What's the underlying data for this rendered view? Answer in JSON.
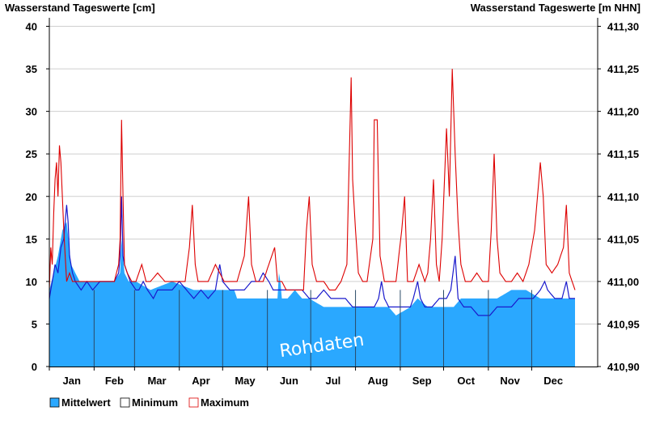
{
  "chart_data": {
    "type": "area",
    "title_left": "Wasserstand Tageswerte [cm]",
    "title_right": "Wasserstand Tageswerte [m NHN]",
    "watermark": "Rohdaten",
    "ylim": [
      0,
      41
    ],
    "ylim_right": [
      410.9,
      411.31
    ],
    "yticks": [
      "0",
      "5",
      "10",
      "15",
      "20",
      "25",
      "30",
      "35",
      "40"
    ],
    "yticks_right": [
      "410,90",
      "410,95",
      "411,00",
      "411,05",
      "411,10",
      "411,15",
      "411,20",
      "411,25",
      "411,30"
    ],
    "months": [
      "Jan",
      "Feb",
      "Mar",
      "Apr",
      "May",
      "Jun",
      "Jul",
      "Aug",
      "Sep",
      "Oct",
      "Nov",
      "Dec"
    ],
    "x_days": 365,
    "grid": true,
    "legend_position": "bottom-left",
    "colors": {
      "mean_fill": "#2aa8ff",
      "min_line": "#1a1acc",
      "max_line": "#dd0000",
      "grid": "#cfcfcf",
      "month_line": "#2a4a66"
    },
    "series": [
      {
        "name": "Mittelwert",
        "color": "#2aa8ff",
        "daily": [
          [
            0,
            9
          ],
          [
            3,
            11
          ],
          [
            6,
            13
          ],
          [
            9,
            16
          ],
          [
            12,
            17
          ],
          [
            15,
            12
          ],
          [
            18,
            11
          ],
          [
            21,
            10
          ],
          [
            25,
            10
          ],
          [
            30,
            10
          ],
          [
            35,
            10
          ],
          [
            40,
            10
          ],
          [
            45,
            10
          ],
          [
            49,
            11
          ],
          [
            50,
            15
          ],
          [
            51,
            13
          ],
          [
            52,
            11
          ],
          [
            55,
            10
          ],
          [
            60,
            10
          ],
          [
            70,
            9
          ],
          [
            85,
            10
          ],
          [
            100,
            9
          ],
          [
            110,
            9
          ],
          [
            120,
            9
          ],
          [
            128,
            9
          ],
          [
            130,
            8
          ],
          [
            140,
            8
          ],
          [
            150,
            8
          ],
          [
            158,
            8
          ],
          [
            159,
            11
          ],
          [
            160,
            10
          ],
          [
            161,
            8
          ],
          [
            165,
            8
          ],
          [
            170,
            9
          ],
          [
            175,
            8
          ],
          [
            180,
            8
          ],
          [
            190,
            7
          ],
          [
            200,
            7
          ],
          [
            220,
            7
          ],
          [
            235,
            7
          ],
          [
            240,
            6
          ],
          [
            250,
            7
          ],
          [
            255,
            8
          ],
          [
            262,
            7
          ],
          [
            270,
            7
          ],
          [
            280,
            7
          ],
          [
            285,
            8
          ],
          [
            290,
            8
          ],
          [
            300,
            8
          ],
          [
            310,
            8
          ],
          [
            320,
            9
          ],
          [
            330,
            9
          ],
          [
            340,
            8
          ],
          [
            350,
            8
          ],
          [
            360,
            8
          ],
          [
            364,
            8
          ]
        ]
      },
      {
        "name": "Minimum",
        "color": "#1a1acc",
        "daily": [
          [
            0,
            8
          ],
          [
            2,
            10
          ],
          [
            4,
            12
          ],
          [
            6,
            11
          ],
          [
            8,
            14
          ],
          [
            10,
            15
          ],
          [
            11,
            17
          ],
          [
            12,
            19
          ],
          [
            13,
            17
          ],
          [
            14,
            13
          ],
          [
            16,
            11
          ],
          [
            18,
            10
          ],
          [
            22,
            9
          ],
          [
            26,
            10
          ],
          [
            30,
            9
          ],
          [
            35,
            10
          ],
          [
            40,
            10
          ],
          [
            45,
            10
          ],
          [
            48,
            11
          ],
          [
            49,
            13
          ],
          [
            50,
            20
          ],
          [
            51,
            13
          ],
          [
            52,
            12
          ],
          [
            54,
            11
          ],
          [
            56,
            10
          ],
          [
            60,
            9
          ],
          [
            62,
            9
          ],
          [
            65,
            10
          ],
          [
            68,
            9
          ],
          [
            72,
            8
          ],
          [
            75,
            9
          ],
          [
            80,
            9
          ],
          [
            85,
            9
          ],
          [
            90,
            10
          ],
          [
            95,
            9
          ],
          [
            100,
            8
          ],
          [
            105,
            9
          ],
          [
            110,
            8
          ],
          [
            115,
            9
          ],
          [
            118,
            12
          ],
          [
            120,
            10
          ],
          [
            125,
            9
          ],
          [
            130,
            9
          ],
          [
            135,
            9
          ],
          [
            140,
            10
          ],
          [
            145,
            10
          ],
          [
            148,
            11
          ],
          [
            152,
            10
          ],
          [
            155,
            9
          ],
          [
            160,
            9
          ],
          [
            165,
            9
          ],
          [
            170,
            9
          ],
          [
            175,
            9
          ],
          [
            180,
            8
          ],
          [
            185,
            8
          ],
          [
            190,
            9
          ],
          [
            195,
            8
          ],
          [
            200,
            8
          ],
          [
            205,
            8
          ],
          [
            210,
            7
          ],
          [
            215,
            7
          ],
          [
            220,
            7
          ],
          [
            225,
            7
          ],
          [
            228,
            8
          ],
          [
            230,
            10
          ],
          [
            232,
            8
          ],
          [
            235,
            7
          ],
          [
            240,
            7
          ],
          [
            245,
            7
          ],
          [
            250,
            7
          ],
          [
            252,
            8
          ],
          [
            255,
            10
          ],
          [
            257,
            8
          ],
          [
            260,
            7
          ],
          [
            265,
            7
          ],
          [
            270,
            8
          ],
          [
            275,
            8
          ],
          [
            278,
            9
          ],
          [
            281,
            13
          ],
          [
            283,
            8
          ],
          [
            287,
            7
          ],
          [
            292,
            7
          ],
          [
            297,
            6
          ],
          [
            300,
            6
          ],
          [
            305,
            6
          ],
          [
            310,
            7
          ],
          [
            315,
            7
          ],
          [
            320,
            7
          ],
          [
            325,
            8
          ],
          [
            330,
            8
          ],
          [
            335,
            8
          ],
          [
            340,
            9
          ],
          [
            343,
            10
          ],
          [
            345,
            9
          ],
          [
            350,
            8
          ],
          [
            355,
            8
          ],
          [
            358,
            10
          ],
          [
            360,
            8
          ],
          [
            364,
            8
          ]
        ]
      },
      {
        "name": "Maximum",
        "color": "#dd0000",
        "daily": [
          [
            0,
            9
          ],
          [
            1,
            14
          ],
          [
            2,
            12
          ],
          [
            3,
            18
          ],
          [
            4,
            22
          ],
          [
            5,
            24
          ],
          [
            6,
            20
          ],
          [
            7,
            26
          ],
          [
            8,
            24
          ],
          [
            9,
            20
          ],
          [
            10,
            16
          ],
          [
            11,
            13
          ],
          [
            12,
            10
          ],
          [
            14,
            11
          ],
          [
            16,
            10
          ],
          [
            20,
            10
          ],
          [
            25,
            10
          ],
          [
            30,
            10
          ],
          [
            35,
            10
          ],
          [
            40,
            10
          ],
          [
            45,
            10
          ],
          [
            48,
            12
          ],
          [
            49,
            15
          ],
          [
            50,
            29
          ],
          [
            51,
            20
          ],
          [
            52,
            12
          ],
          [
            54,
            11
          ],
          [
            57,
            10
          ],
          [
            60,
            10
          ],
          [
            64,
            12
          ],
          [
            67,
            10
          ],
          [
            70,
            10
          ],
          [
            75,
            11
          ],
          [
            80,
            10
          ],
          [
            85,
            10
          ],
          [
            90,
            10
          ],
          [
            94,
            10
          ],
          [
            97,
            14
          ],
          [
            99,
            19
          ],
          [
            101,
            12
          ],
          [
            103,
            10
          ],
          [
            107,
            10
          ],
          [
            110,
            10
          ],
          [
            115,
            12
          ],
          [
            118,
            11
          ],
          [
            121,
            10
          ],
          [
            125,
            10
          ],
          [
            130,
            10
          ],
          [
            135,
            13
          ],
          [
            138,
            20
          ],
          [
            140,
            12
          ],
          [
            143,
            10
          ],
          [
            148,
            10
          ],
          [
            152,
            12
          ],
          [
            156,
            14
          ],
          [
            158,
            10
          ],
          [
            161,
            10
          ],
          [
            164,
            9
          ],
          [
            168,
            9
          ],
          [
            172,
            9
          ],
          [
            176,
            9
          ],
          [
            178,
            16
          ],
          [
            180,
            20
          ],
          [
            182,
            12
          ],
          [
            185,
            10
          ],
          [
            190,
            10
          ],
          [
            194,
            9
          ],
          [
            198,
            9
          ],
          [
            202,
            10
          ],
          [
            206,
            12
          ],
          [
            209,
            34
          ],
          [
            210,
            22
          ],
          [
            212,
            16
          ],
          [
            214,
            11
          ],
          [
            217,
            10
          ],
          [
            220,
            10
          ],
          [
            224,
            15
          ],
          [
            225,
            29
          ],
          [
            227,
            29
          ],
          [
            229,
            13
          ],
          [
            232,
            10
          ],
          [
            236,
            10
          ],
          [
            240,
            10
          ],
          [
            244,
            16
          ],
          [
            246,
            20
          ],
          [
            248,
            10
          ],
          [
            252,
            10
          ],
          [
            256,
            12
          ],
          [
            260,
            10
          ],
          [
            262,
            11
          ],
          [
            264,
            15
          ],
          [
            266,
            22
          ],
          [
            268,
            12
          ],
          [
            270,
            10
          ],
          [
            272,
            15
          ],
          [
            275,
            28
          ],
          [
            277,
            20
          ],
          [
            279,
            35
          ],
          [
            281,
            25
          ],
          [
            283,
            17
          ],
          [
            285,
            12
          ],
          [
            288,
            10
          ],
          [
            292,
            10
          ],
          [
            296,
            11
          ],
          [
            300,
            10
          ],
          [
            304,
            10
          ],
          [
            306,
            16
          ],
          [
            308,
            25
          ],
          [
            310,
            15
          ],
          [
            312,
            11
          ],
          [
            316,
            10
          ],
          [
            320,
            10
          ],
          [
            324,
            11
          ],
          [
            328,
            10
          ],
          [
            332,
            12
          ],
          [
            336,
            16
          ],
          [
            340,
            24
          ],
          [
            342,
            20
          ],
          [
            344,
            12
          ],
          [
            348,
            11
          ],
          [
            352,
            12
          ],
          [
            356,
            14
          ],
          [
            358,
            19
          ],
          [
            360,
            11
          ],
          [
            364,
            9
          ]
        ]
      }
    ]
  }
}
